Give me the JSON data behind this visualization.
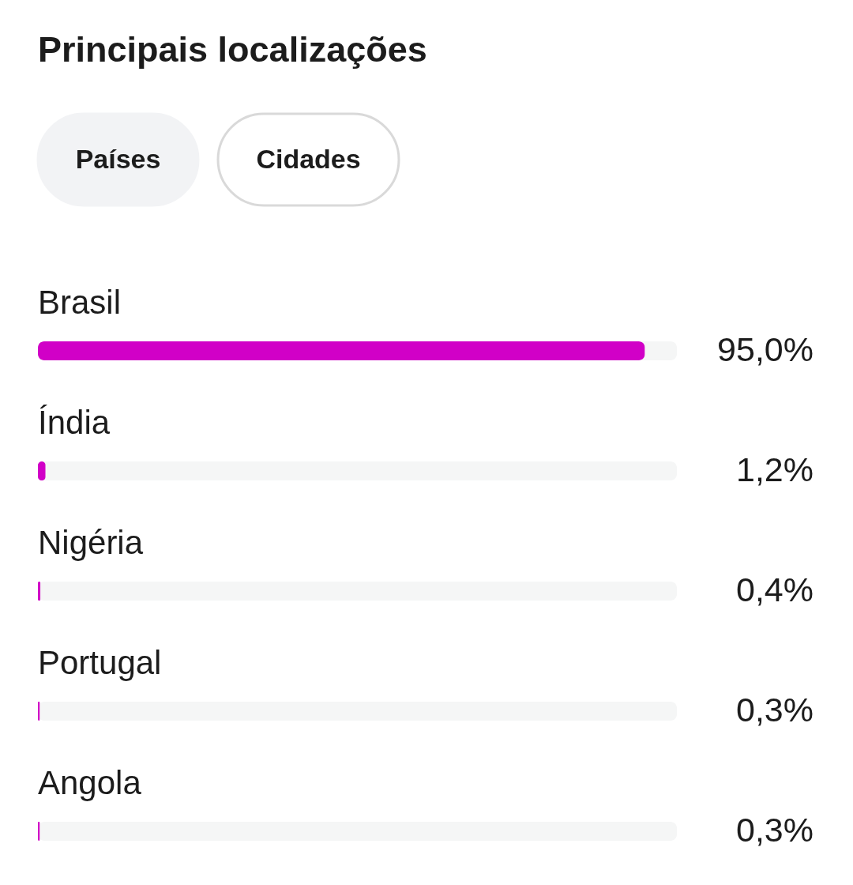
{
  "chart_data": {
    "type": "bar",
    "orientation": "horizontal",
    "title": "Principais localizações",
    "annotations": [
      "Países",
      "Cidades"
    ],
    "categories": [
      "Brasil",
      "Índia",
      "Nigéria",
      "Portugal",
      "Angola"
    ],
    "values": [
      95.0,
      1.2,
      0.4,
      0.3,
      0.3
    ],
    "value_labels": [
      "95,0%",
      "1,2%",
      "0,4%",
      "0,3%",
      "0,3%"
    ],
    "color": "#d100c7",
    "xlim": [
      0,
      100
    ]
  }
}
